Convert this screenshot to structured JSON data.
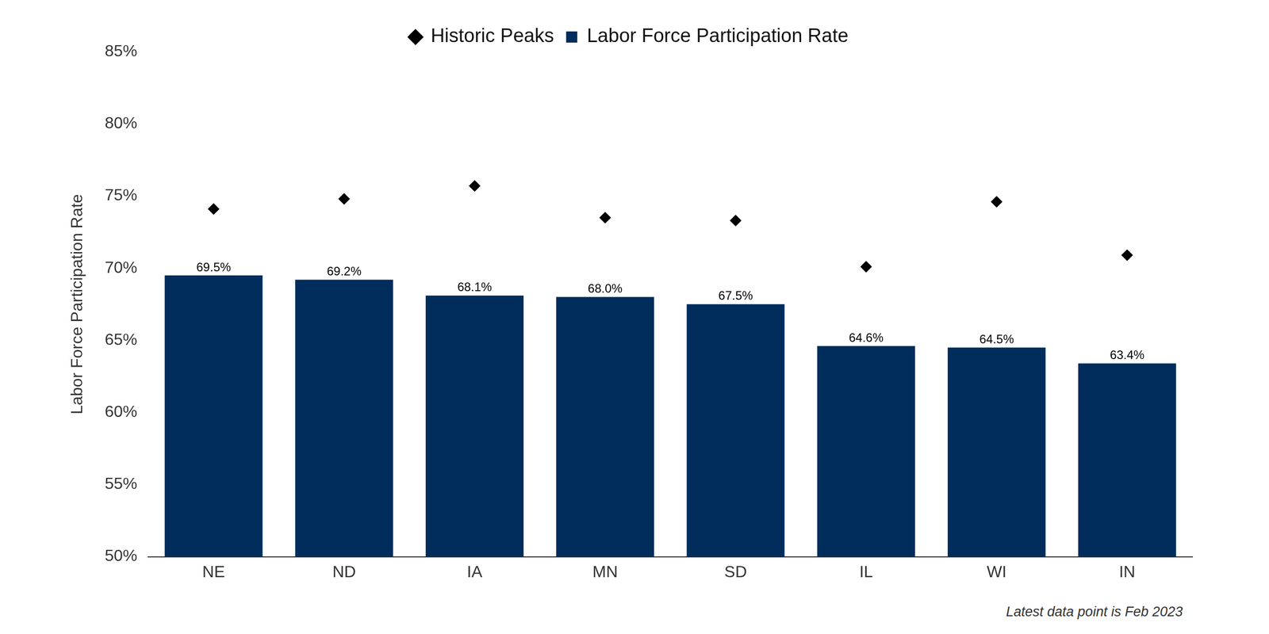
{
  "chart_data": {
    "type": "bar",
    "y_label": "Labor Force Participation Rate",
    "annotations": [
      "Latest data point is Feb 2023"
    ],
    "categories": [
      "NE",
      "ND",
      "IA",
      "MN",
      "SD",
      "IL",
      "WI",
      "IN"
    ],
    "series": [
      {
        "name": "Labor Force Participation Rate",
        "type": "bar",
        "color": "#002d5c",
        "values": [
          69.5,
          69.2,
          68.1,
          68.0,
          67.5,
          64.6,
          64.5,
          63.4
        ],
        "value_labels": [
          "69.5%",
          "69.2%",
          "68.1%",
          "68.0%",
          "67.5%",
          "64.6%",
          "64.5%",
          "63.4%"
        ]
      },
      {
        "name": "Historic Peaks",
        "type": "scatter",
        "marker": "diamond",
        "color": "#000000",
        "values": [
          74.1,
          74.8,
          75.7,
          73.5,
          73.3,
          70.1,
          74.6,
          70.9
        ]
      }
    ],
    "ylim": [
      50,
      85
    ],
    "yticks": [
      {
        "value": 50,
        "label": "50%"
      },
      {
        "value": 55,
        "label": "55%"
      },
      {
        "value": 60,
        "label": "60%"
      },
      {
        "value": 65,
        "label": "65%"
      },
      {
        "value": 70,
        "label": "70%"
      },
      {
        "value": 75,
        "label": "75%"
      },
      {
        "value": 80,
        "label": "80%"
      },
      {
        "value": 85,
        "label": "85%"
      }
    ],
    "grid": false,
    "legend": "top",
    "data_labels": true
  }
}
